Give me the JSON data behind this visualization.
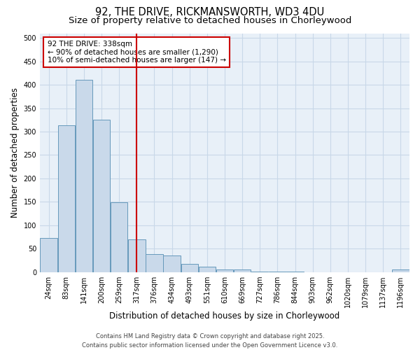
{
  "title": "92, THE DRIVE, RICKMANSWORTH, WD3 4DU",
  "subtitle": "Size of property relative to detached houses in Chorleywood",
  "xlabel": "Distribution of detached houses by size in Chorleywood",
  "ylabel": "Number of detached properties",
  "bar_labels": [
    "24sqm",
    "83sqm",
    "141sqm",
    "200sqm",
    "259sqm",
    "317sqm",
    "376sqm",
    "434sqm",
    "493sqm",
    "551sqm",
    "610sqm",
    "669sqm",
    "727sqm",
    "786sqm",
    "844sqm",
    "903sqm",
    "962sqm",
    "1020sqm",
    "1079sqm",
    "1137sqm",
    "1196sqm"
  ],
  "bar_values": [
    73,
    313,
    410,
    325,
    149,
    70,
    38,
    36,
    18,
    11,
    5,
    6,
    1,
    1,
    1,
    0,
    0,
    0,
    0,
    0,
    5
  ],
  "bar_color": "#c9d9ea",
  "bar_edge_color": "#6699bb",
  "vline_x": 5.0,
  "vline_color": "#cc0000",
  "annotation_text": "92 THE DRIVE: 338sqm\n← 90% of detached houses are smaller (1,290)\n10% of semi-detached houses are larger (147) →",
  "annotation_box_color": "#ffffff",
  "annotation_edge_color": "#cc0000",
  "ylim": [
    0,
    510
  ],
  "yticks": [
    0,
    50,
    100,
    150,
    200,
    250,
    300,
    350,
    400,
    450,
    500
  ],
  "grid_color": "#c8d8e8",
  "bg_color": "#e8f0f8",
  "footer": "Contains HM Land Registry data © Crown copyright and database right 2025.\nContains public sector information licensed under the Open Government Licence v3.0.",
  "title_fontsize": 10.5,
  "subtitle_fontsize": 9.5,
  "ylabel_fontsize": 8.5,
  "xlabel_fontsize": 8.5,
  "tick_fontsize": 7,
  "footer_fontsize": 6,
  "annotation_fontsize": 7.5
}
